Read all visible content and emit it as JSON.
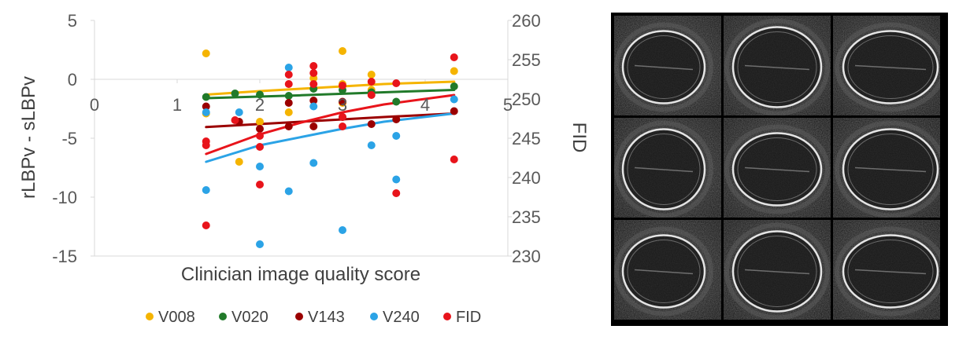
{
  "chart_data": {
    "type": "scatter",
    "xlabel": "Clinician image quality score",
    "ylabel": "rLBPv - sLBPv",
    "y2label": "FID",
    "xlim": [
      0,
      5
    ],
    "ylim": [
      -15,
      5
    ],
    "y2lim": [
      230,
      260
    ],
    "x_ticks": [
      "0",
      "1",
      "2",
      "3",
      "4",
      "5"
    ],
    "y_ticks": [
      "5",
      "0",
      "-5",
      "-10",
      "-15"
    ],
    "y2_ticks": [
      "260",
      "255",
      "250",
      "245",
      "240",
      "235",
      "230"
    ],
    "grid": false,
    "legend_position": "bottom",
    "trendlines": true,
    "series": [
      {
        "name": "V008",
        "color": "#f5b400",
        "axis": "left",
        "points": [
          [
            1.35,
            2.2
          ],
          [
            1.35,
            -2.9
          ],
          [
            1.75,
            -7.0
          ],
          [
            2.0,
            -3.6
          ],
          [
            2.35,
            -2.8
          ],
          [
            2.65,
            0.1
          ],
          [
            3.0,
            2.4
          ],
          [
            3.0,
            -0.4
          ],
          [
            3.0,
            -2.0
          ],
          [
            3.35,
            0.4
          ],
          [
            3.35,
            -0.9
          ],
          [
            4.35,
            0.7
          ]
        ],
        "trend": [
          [
            1.35,
            -1.3
          ],
          [
            2.0,
            -1.0
          ],
          [
            2.5,
            -0.8
          ],
          [
            3.0,
            -0.6
          ],
          [
            3.5,
            -0.4
          ],
          [
            4.35,
            -0.2
          ]
        ]
      },
      {
        "name": "V020",
        "color": "#217a2a",
        "axis": "left",
        "points": [
          [
            1.35,
            -1.5
          ],
          [
            1.7,
            -1.2
          ],
          [
            2.0,
            -1.3
          ],
          [
            2.35,
            -1.4
          ],
          [
            2.65,
            -0.8
          ],
          [
            3.0,
            -0.9
          ],
          [
            3.35,
            -1.1
          ],
          [
            3.65,
            -1.9
          ],
          [
            4.35,
            -0.6
          ]
        ],
        "trend": [
          [
            1.35,
            -1.6
          ],
          [
            2.5,
            -1.35
          ],
          [
            3.5,
            -1.1
          ],
          [
            4.35,
            -0.9
          ]
        ]
      },
      {
        "name": "V143",
        "color": "#9b0000",
        "axis": "left",
        "points": [
          [
            1.35,
            -2.3
          ],
          [
            1.75,
            -3.6
          ],
          [
            2.0,
            -4.2
          ],
          [
            2.35,
            -2.0
          ],
          [
            2.35,
            -4.0
          ],
          [
            2.65,
            -1.8
          ],
          [
            2.65,
            -4.0
          ],
          [
            3.0,
            -1.9
          ],
          [
            3.0,
            -3.2
          ],
          [
            3.35,
            -3.8
          ],
          [
            3.65,
            -3.4
          ],
          [
            4.35,
            -2.7
          ]
        ],
        "trend": [
          [
            1.35,
            -4.05
          ],
          [
            2.5,
            -3.6
          ],
          [
            3.5,
            -3.2
          ],
          [
            4.35,
            -2.9
          ]
        ]
      },
      {
        "name": "V240",
        "color": "#2ba3e6",
        "axis": "left",
        "points": [
          [
            1.35,
            -2.8
          ],
          [
            1.35,
            -9.4
          ],
          [
            1.75,
            -2.8
          ],
          [
            2.0,
            -7.4
          ],
          [
            2.0,
            -14.0
          ],
          [
            2.35,
            1.0
          ],
          [
            2.35,
            -9.5
          ],
          [
            2.65,
            -2.3
          ],
          [
            2.65,
            -7.1
          ],
          [
            3.0,
            -12.8
          ],
          [
            3.35,
            -5.6
          ],
          [
            3.65,
            -4.8
          ],
          [
            3.65,
            -8.5
          ],
          [
            4.35,
            -1.7
          ]
        ],
        "trend": [
          [
            1.35,
            -7.0
          ],
          [
            2.0,
            -5.6
          ],
          [
            2.5,
            -4.9
          ],
          [
            3.0,
            -4.2
          ],
          [
            3.5,
            -3.6
          ],
          [
            4.35,
            -2.9
          ]
        ]
      },
      {
        "name": "FID",
        "color": "#e8141b",
        "axis": "right",
        "points": [
          [
            1.35,
            244.1
          ],
          [
            1.35,
            244.6
          ],
          [
            1.35,
            233.9
          ],
          [
            1.7,
            247.3
          ],
          [
            2.0,
            245.3
          ],
          [
            2.0,
            243.9
          ],
          [
            2.0,
            239.1
          ],
          [
            2.35,
            253.1
          ],
          [
            2.35,
            251.9
          ],
          [
            2.65,
            254.2
          ],
          [
            2.65,
            253.3
          ],
          [
            2.65,
            251.9
          ],
          [
            3.0,
            251.7
          ],
          [
            3.0,
            246.5
          ],
          [
            3.0,
            247.7
          ],
          [
            3.35,
            252.2
          ],
          [
            3.35,
            250.5
          ],
          [
            3.65,
            252.0
          ],
          [
            3.65,
            238.0
          ],
          [
            4.35,
            255.3
          ],
          [
            4.35,
            242.3
          ]
        ],
        "trend": [
          [
            1.35,
            243.0
          ],
          [
            2.0,
            245.5
          ],
          [
            2.5,
            247.0
          ],
          [
            3.0,
            248.3
          ],
          [
            3.5,
            249.3
          ],
          [
            4.35,
            250.5
          ]
        ]
      }
    ]
  },
  "image_panel": {
    "description_icon": "ultrasound-grid-icon",
    "rows": 3,
    "cols": 3
  }
}
